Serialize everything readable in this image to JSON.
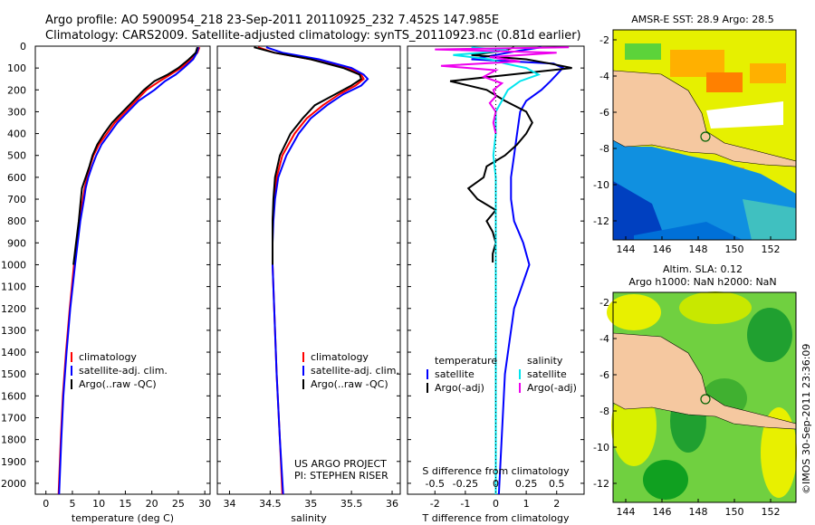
{
  "title": {
    "line1": "Argo profile: AO 5900954_218 23-Sep-2011 20110925_232 7.452S 147.985E",
    "line2": "Climatology: CARS2009. Satellite-adjusted climatology: synTS_20110923.nc (0.81d earlier)"
  },
  "colors": {
    "climatology": "#ff0000",
    "satellite": "#0000ff",
    "argo": "#000000",
    "sal_sat": "#00e5ee",
    "sal_argo": "#ee00ee",
    "land": "#f5c8a0"
  },
  "depth_ticks": [
    "0",
    "100",
    "200",
    "300",
    "400",
    "500",
    "600",
    "700",
    "800",
    "900",
    "1000",
    "1100",
    "1200",
    "1300",
    "1400",
    "1500",
    "1600",
    "1700",
    "1800",
    "1900",
    "2000"
  ],
  "chart_data": [
    {
      "type": "line",
      "name": "temperature",
      "xlabel": "temperature (deg C)",
      "xticks": [
        "0",
        "5",
        "10",
        "15",
        "20",
        "25",
        "30"
      ],
      "xlim": [
        -2,
        31
      ],
      "ylim": [
        0,
        2050
      ],
      "legend": [
        "climatology",
        "satellite-adj. clim.",
        "Argo(..raw -QC)"
      ],
      "series": [
        {
          "name": "climatology",
          "color": "#ff0000",
          "depth": [
            5,
            30,
            60,
            100,
            130,
            160,
            200,
            250,
            300,
            350,
            400,
            450,
            500,
            550,
            600,
            650,
            700,
            800,
            900,
            1000,
            1200,
            1400,
            1600,
            1800,
            2050
          ],
          "values": [
            29.0,
            28.6,
            27.5,
            25.5,
            23.5,
            21.5,
            19.0,
            17.0,
            15.0,
            13.0,
            11.5,
            10.0,
            9.0,
            8.3,
            7.8,
            7.3,
            7.0,
            6.3,
            5.8,
            5.3,
            4.5,
            3.8,
            3.2,
            2.8,
            2.4
          ]
        },
        {
          "name": "satellite-adj. clim.",
          "color": "#0000ff",
          "depth": [
            5,
            30,
            60,
            100,
            130,
            160,
            200,
            250,
            300,
            350,
            400,
            450,
            500,
            550,
            600,
            650,
            700,
            800,
            900,
            1000,
            1200,
            1400,
            1600,
            1800,
            2050
          ],
          "values": [
            28.8,
            28.5,
            27.8,
            26.0,
            24.5,
            22.5,
            20.5,
            17.5,
            15.5,
            13.5,
            12.0,
            10.5,
            9.5,
            8.7,
            8.0,
            7.5,
            7.2,
            6.5,
            6.0,
            5.5,
            4.6,
            3.9,
            3.3,
            2.9,
            2.5
          ]
        },
        {
          "name": "Argo(..raw -QC)",
          "color": "#000000",
          "depth": [
            5,
            30,
            60,
            100,
            130,
            160,
            200,
            250,
            300,
            350,
            400,
            450,
            500,
            550,
            600,
            650,
            700,
            800,
            900,
            1000
          ],
          "values": [
            28.6,
            28.3,
            27.0,
            25.0,
            23.0,
            20.5,
            18.5,
            16.5,
            14.5,
            12.5,
            11.0,
            9.7,
            8.8,
            8.2,
            7.5,
            6.8,
            6.6,
            6.2,
            5.7,
            5.2
          ]
        }
      ]
    },
    {
      "type": "line",
      "name": "salinity",
      "xlabel": "salinity",
      "xticks": [
        "34",
        "34.5",
        "35",
        "35.5",
        "36"
      ],
      "xlim": [
        33.85,
        36.1
      ],
      "ylim": [
        0,
        2050
      ],
      "legend": [
        "climatology",
        "satellite-adj. clim.",
        "Argo(..raw -QC)"
      ],
      "annotation": [
        "US ARGO PROJECT",
        "PI: STEPHEN RISER"
      ],
      "series": [
        {
          "name": "climatology",
          "color": "#ff0000",
          "depth": [
            5,
            30,
            60,
            100,
            130,
            150,
            180,
            220,
            270,
            330,
            400,
            500,
            600,
            700,
            800,
            900,
            1000,
            1200,
            1500,
            1800,
            2050
          ],
          "values": [
            34.35,
            34.55,
            35.0,
            35.45,
            35.62,
            35.65,
            35.55,
            35.35,
            35.15,
            34.95,
            34.8,
            34.65,
            34.58,
            34.55,
            34.53,
            34.53,
            34.53,
            34.55,
            34.58,
            34.62,
            34.65
          ]
        },
        {
          "name": "satellite-adj. clim.",
          "color": "#0000ff",
          "depth": [
            5,
            30,
            60,
            100,
            130,
            150,
            180,
            220,
            270,
            330,
            400,
            500,
            600,
            700,
            800,
            900,
            1000,
            1200,
            1500,
            1800,
            2050
          ],
          "values": [
            34.45,
            34.65,
            35.1,
            35.5,
            35.65,
            35.7,
            35.62,
            35.4,
            35.2,
            35.0,
            34.85,
            34.7,
            34.6,
            34.56,
            34.54,
            34.53,
            34.53,
            34.55,
            34.58,
            34.62,
            34.66
          ]
        },
        {
          "name": "Argo(..raw -QC)",
          "color": "#000000",
          "depth": [
            5,
            30,
            60,
            100,
            130,
            150,
            180,
            220,
            270,
            330,
            400,
            500,
            600,
            700,
            800,
            900,
            1000
          ],
          "values": [
            34.3,
            34.55,
            35.0,
            35.4,
            35.6,
            35.62,
            35.5,
            35.3,
            35.05,
            34.9,
            34.75,
            34.62,
            34.56,
            34.54,
            34.53,
            34.53,
            34.53
          ]
        }
      ]
    },
    {
      "type": "line",
      "name": "difference",
      "xlabel_top": "S difference from climatology",
      "xticks_top": [
        "-0.5",
        "-0.25",
        "0",
        "0.25",
        "0.5"
      ],
      "xlabel": "T difference from climatology",
      "xticks": [
        "-2",
        "-1",
        "0",
        "1",
        "2"
      ],
      "xlim_T": [
        -2.9,
        2.9
      ],
      "ylim": [
        0,
        2050
      ],
      "legend_temperature": {
        "title": "temperature",
        "items": [
          "satellite",
          "Argo(-adj)"
        ]
      },
      "legend_salinity": {
        "title": "salinity",
        "items": [
          "satellite",
          "Argo(-adj)"
        ]
      },
      "series": [
        {
          "name": "T satellite",
          "color": "#0000ff",
          "depth": [
            5,
            20,
            40,
            60,
            80,
            100,
            130,
            160,
            200,
            250,
            300,
            400,
            500,
            600,
            700,
            800,
            900,
            1000,
            1200,
            1500,
            2050
          ],
          "values": [
            1.5,
            0.8,
            0.0,
            -0.8,
            1.9,
            2.2,
            2.0,
            1.8,
            1.5,
            1.0,
            0.8,
            0.7,
            0.6,
            0.5,
            0.5,
            0.6,
            0.9,
            1.1,
            0.6,
            0.3,
            0.1
          ]
        },
        {
          "name": "T Argo(-adj)",
          "color": "#000000",
          "depth": [
            5,
            20,
            40,
            60,
            80,
            100,
            130,
            160,
            200,
            250,
            300,
            350,
            400,
            450,
            500,
            550,
            600,
            650,
            700,
            750,
            800,
            850,
            900,
            950,
            990
          ],
          "values": [
            0.6,
            0.3,
            -0.8,
            1.0,
            1.8,
            2.5,
            0.5,
            -1.5,
            -0.3,
            0.3,
            1.0,
            1.2,
            1.0,
            0.7,
            0.3,
            -0.3,
            -0.4,
            -0.9,
            -0.6,
            0.0,
            -0.3,
            -0.1,
            0.0,
            -0.1,
            -0.1
          ]
        },
        {
          "name": "S satellite",
          "color": "#00e5ee",
          "depth": [
            5,
            20,
            40,
            60,
            80,
            100,
            130,
            160,
            200,
            250,
            300,
            400,
            500,
            600,
            700,
            800,
            900,
            1000,
            1200,
            1500,
            2050
          ],
          "values": [
            -0.2,
            0.1,
            -0.35,
            -0.05,
            0.08,
            0.25,
            0.35,
            0.2,
            0.1,
            0.05,
            0.0,
            0.0,
            -0.02,
            0.0,
            0.0,
            0.0,
            0.0,
            0.0,
            0.0,
            0.0,
            0.0
          ]
        },
        {
          "name": "S Argo(-adj)",
          "color": "#ee00ee",
          "depth": [
            5,
            15,
            30,
            50,
            70,
            90,
            110,
            140,
            170,
            200,
            230,
            260,
            300,
            350,
            400
          ],
          "values": [
            0.6,
            -0.5,
            0.5,
            -0.05,
            0.2,
            -0.45,
            0.0,
            -0.1,
            0.05,
            -0.02,
            0.0,
            -0.05,
            0.0,
            -0.02,
            0.0
          ]
        }
      ]
    }
  ],
  "maps": {
    "sst": {
      "title": "AMSR-E SST: 28.9 Argo: 28.5",
      "xticks": [
        "144",
        "146",
        "148",
        "150",
        "152"
      ],
      "yticks": [
        "-2",
        "-4",
        "-6",
        "-8",
        "-10",
        "-12"
      ]
    },
    "sla": {
      "title1": "Altim. SLA: 0.12",
      "title2": "Argo h1000: NaN h2000: NaN",
      "xticks": [
        "144",
        "146",
        "148",
        "150",
        "152"
      ],
      "yticks": [
        "-2",
        "-4",
        "-6",
        "-8",
        "-10",
        "-12"
      ]
    }
  },
  "footer": "©IMOS 30-Sep-2011 23:36:09"
}
